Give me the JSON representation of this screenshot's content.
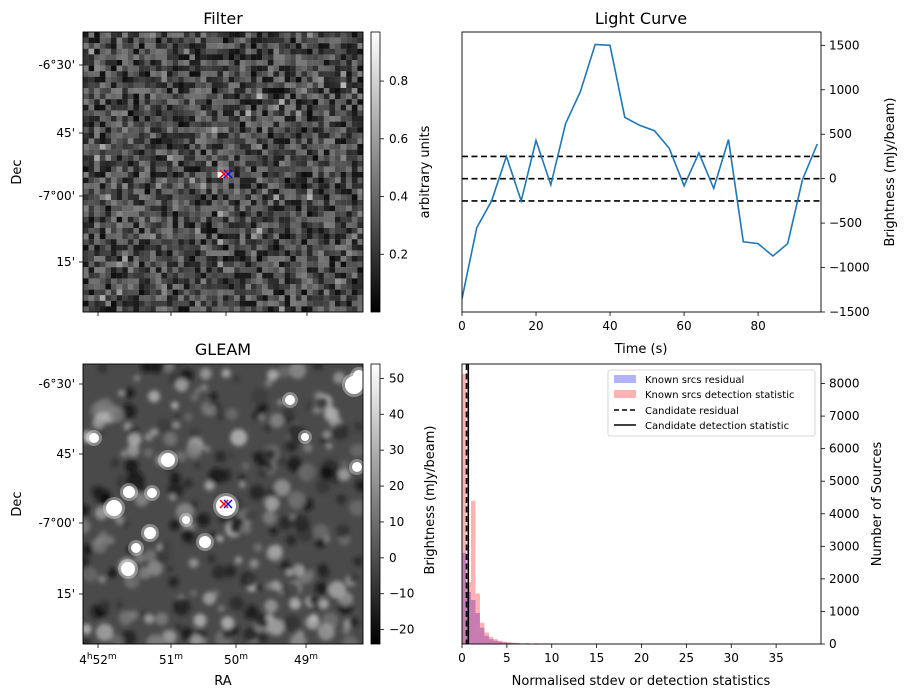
{
  "chart_data": [
    {
      "type": "heatmap",
      "panel": "filter",
      "title": "Filter",
      "xlabel": "",
      "ylabel": "Dec",
      "yticks": [
        "-6°30'",
        "45'",
        "-7°00'",
        "15'"
      ],
      "colorbar": {
        "label": "arbitrary units",
        "range": [
          0.0,
          0.97
        ],
        "ticks": [
          "0.2",
          "0.4",
          "0.6",
          "0.8"
        ],
        "tick_values": [
          0.2,
          0.4,
          0.6,
          0.8
        ]
      },
      "markers": [
        {
          "symbol": "x",
          "color": "#0000ff"
        },
        {
          "symbol": "x",
          "color": "#ff0000"
        }
      ]
    },
    {
      "type": "line",
      "panel": "light-curve",
      "title": "Light Curve",
      "xlabel": "Time (s)",
      "ylabel": "Brightness (mJy/beam)",
      "xlim": [
        0,
        97
      ],
      "ylim": [
        -1500,
        1650
      ],
      "xticks": [
        0,
        20,
        40,
        60,
        80
      ],
      "yticks": [
        -1500,
        -1000,
        -500,
        0,
        500,
        1000,
        1500
      ],
      "color": "#1f77b4",
      "x": [
        0,
        4,
        8,
        12,
        16,
        20,
        24,
        28,
        32,
        36,
        40,
        44,
        48,
        52,
        56,
        60,
        64,
        68,
        72,
        76,
        80,
        84,
        88,
        92,
        96
      ],
      "y": [
        -1350,
        -550,
        -250,
        250,
        -250,
        430,
        -70,
        620,
        980,
        1510,
        1500,
        690,
        600,
        540,
        340,
        -80,
        290,
        -110,
        440,
        -710,
        -730,
        -870,
        -730,
        -10,
        390
      ],
      "hlines": [
        {
          "y": 250,
          "style": "dashed"
        },
        {
          "y": 0,
          "style": "dashed"
        },
        {
          "y": -250,
          "style": "dashed"
        }
      ]
    },
    {
      "type": "heatmap",
      "panel": "gleam",
      "title": "GLEAM",
      "xlabel": "RA",
      "ylabel": "Dec",
      "xticks": [
        {
          "h": "4",
          "hs": "h",
          "m": "52",
          "ms": "m"
        },
        {
          "h": "",
          "hs": "",
          "m": "51",
          "ms": "m"
        },
        {
          "h": "",
          "hs": "",
          "m": "50",
          "ms": "m"
        },
        {
          "h": "",
          "hs": "",
          "m": "49",
          "ms": "m"
        }
      ],
      "yticks": [
        "-6°30'",
        "45'",
        "-7°00'",
        "15'"
      ],
      "colorbar": {
        "label": "Brightness (mJy/beam)",
        "range": [
          -24,
          54
        ],
        "ticks": [
          "−20",
          "−10",
          "0",
          "10",
          "20",
          "30",
          "40",
          "50"
        ],
        "tick_values": [
          -20,
          -10,
          0,
          10,
          20,
          30,
          40,
          50
        ]
      },
      "markers": [
        {
          "symbol": "x",
          "color": "#0000ff"
        },
        {
          "symbol": "x",
          "color": "#ff0000"
        }
      ]
    },
    {
      "type": "bar",
      "panel": "histogram",
      "xlabel": "Normalised stdev or detection statistics",
      "ylabel": "Number of Sources",
      "xlim": [
        0,
        40
      ],
      "ylim": [
        0,
        8600
      ],
      "xticks": [
        0,
        5,
        10,
        15,
        20,
        25,
        30,
        35
      ],
      "yticks": [
        0,
        1000,
        2000,
        3000,
        4000,
        5000,
        6000,
        7000,
        8000
      ],
      "bin_width": 0.5,
      "series": [
        {
          "name": "Known srcs residual",
          "color": "#0000ff",
          "alpha": 0.3,
          "bins": [
            0,
            0.5,
            1.0,
            1.5,
            2.0,
            2.5,
            3.0,
            3.5,
            4.0,
            4.5,
            5.0,
            5.5,
            6.0,
            6.5,
            7.0
          ],
          "values": [
            2800,
            1600,
            1350,
            950,
            500,
            250,
            150,
            100,
            70,
            50,
            40,
            30,
            20,
            15,
            10
          ]
        },
        {
          "name": "Known srcs detection statistic",
          "color": "#ff0000",
          "alpha": 0.3,
          "bins": [
            0,
            0.5,
            1.0,
            1.5,
            2.0,
            2.5,
            3.0,
            3.5,
            4.0,
            4.5,
            5.0,
            5.5,
            6.0,
            7.0,
            8.0,
            9.0,
            10.0,
            12.0,
            15.0,
            16.5,
            37.0
          ],
          "values": [
            8300,
            1900,
            4400,
            1550,
            650,
            350,
            220,
            150,
            100,
            70,
            50,
            40,
            35,
            30,
            25,
            20,
            15,
            10,
            8,
            6,
            8
          ]
        }
      ],
      "vlines": [
        {
          "name": "Candidate residual",
          "x": 0.5,
          "style": "dashed"
        },
        {
          "name": "Candidate detection statistic",
          "x": 0.7,
          "style": "solid"
        }
      ],
      "legend": "top-right"
    }
  ]
}
